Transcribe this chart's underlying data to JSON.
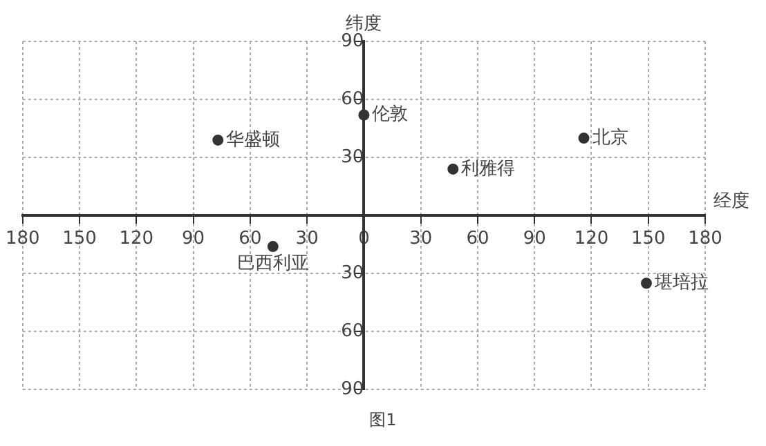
{
  "chart_data": {
    "type": "scatter",
    "xlabel": "经度",
    "ylabel": "纬度",
    "annotations": [
      "图1"
    ],
    "xlim": [
      -180,
      180
    ],
    "ylim": [
      -90,
      90
    ],
    "xticks": [
      {
        "value": -180,
        "label": "180"
      },
      {
        "value": -150,
        "label": "150"
      },
      {
        "value": -120,
        "label": "120"
      },
      {
        "value": -90,
        "label": "90"
      },
      {
        "value": -60,
        "label": "60"
      },
      {
        "value": -30,
        "label": "30"
      },
      0,
      30,
      60,
      90,
      120,
      150,
      180
    ],
    "yticks": [
      {
        "value": -90,
        "label": "90"
      },
      {
        "value": -60,
        "label": "60"
      },
      {
        "value": -30,
        "label": "30"
      },
      {
        "value": 0,
        "label": null
      },
      30,
      60,
      90
    ],
    "grid": true,
    "legend": false,
    "marker": "circle",
    "series": [
      {
        "name": "华盛顿",
        "color": "#333333",
        "x": [
          -77
        ],
        "values": [
          39
        ]
      },
      {
        "name": "伦敦",
        "color": "#333333",
        "x": [
          0
        ],
        "values": [
          52
        ]
      },
      {
        "name": "北京",
        "color": "#333333",
        "x": [
          116
        ],
        "values": [
          40
        ]
      },
      {
        "name": "利雅得",
        "color": "#333333",
        "x": [
          47
        ],
        "values": [
          24
        ]
      },
      {
        "name": "巴西利亚",
        "color": "#333333",
        "x": [
          -48
        ],
        "values": [
          -16
        ]
      },
      {
        "name": "堪培拉",
        "color": "#333333",
        "x": [
          149
        ],
        "values": [
          -35
        ]
      }
    ]
  }
}
